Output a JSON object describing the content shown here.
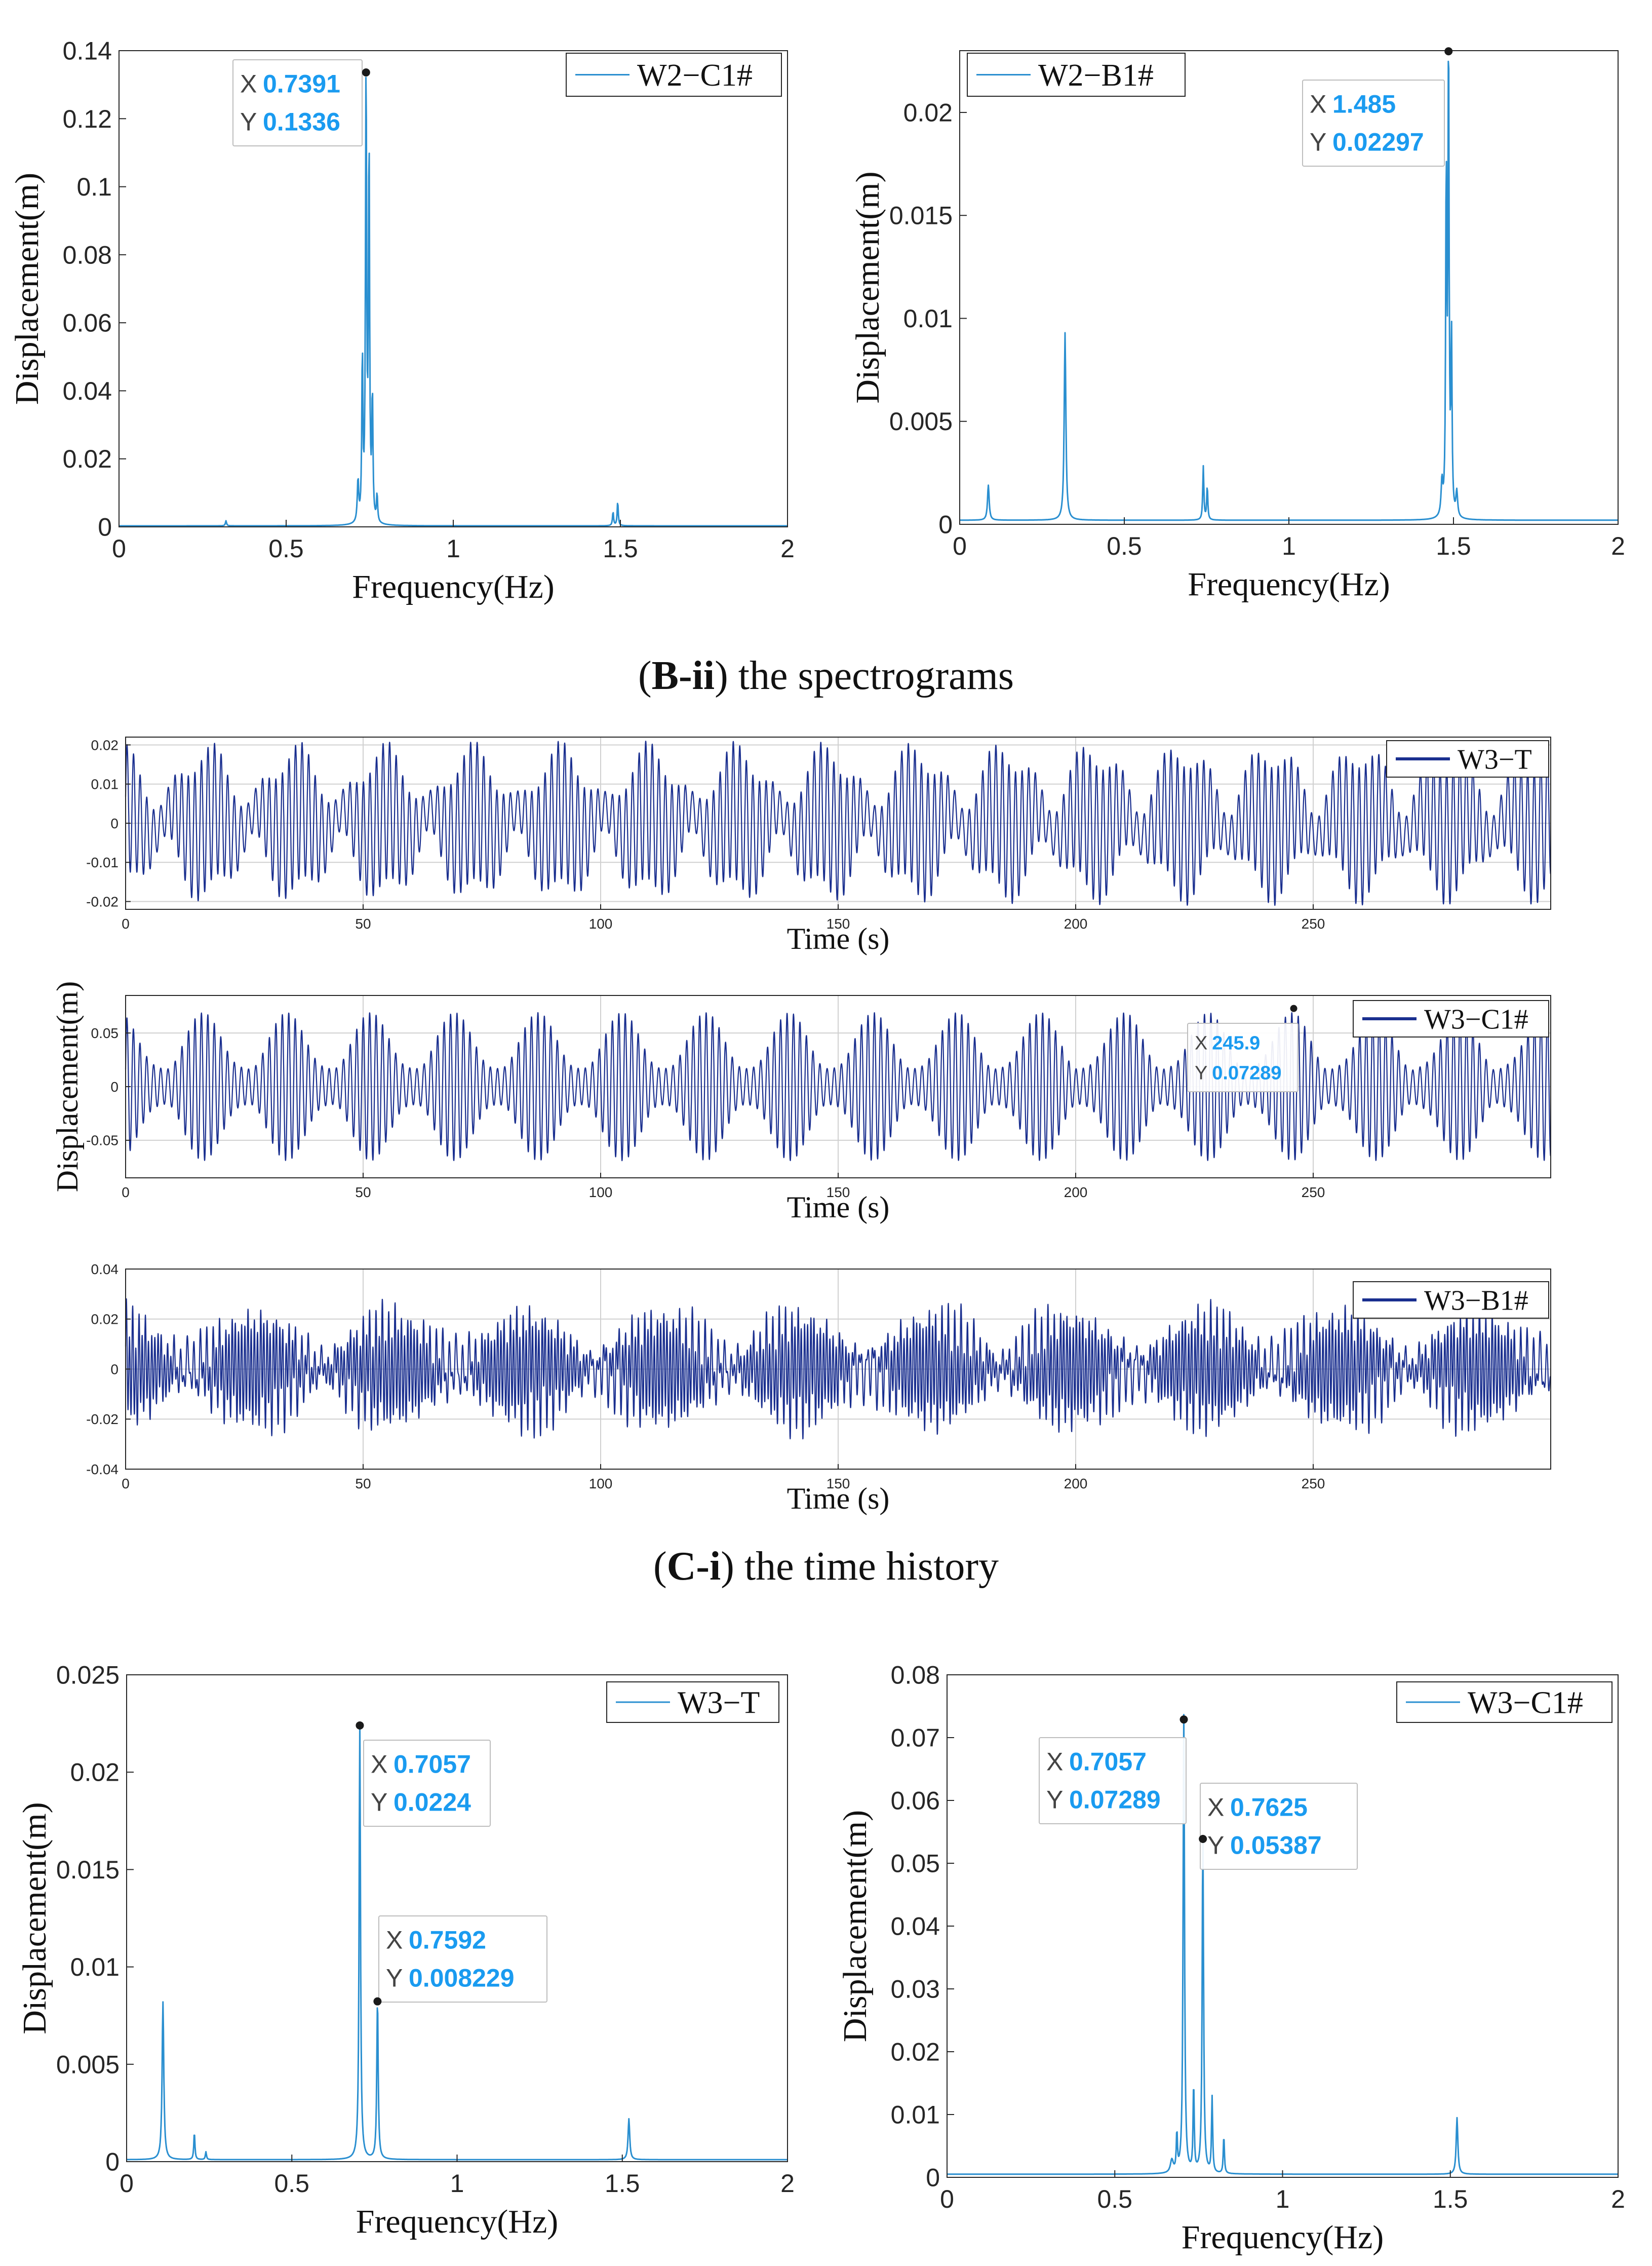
{
  "colors": {
    "spectrum_line": "#2a8fd0",
    "time_line": "#1a2f8f",
    "axis": "#262626",
    "grid": "#d0d0d0",
    "datatip_value": "#1a9bf0",
    "datatip_label": "#444444"
  },
  "captions": {
    "bii": {
      "bold": "B-ii",
      "text": " the spectrograms",
      "open": "(",
      "close": ")"
    },
    "ci": {
      "bold": "C-i",
      "text": " the time history",
      "open": "(",
      "close": ")"
    }
  },
  "chart_data": [
    {
      "id": "spec-w2-c1",
      "type": "line",
      "title": "",
      "legend": "W2−C1#",
      "xlabel": "Frequency(Hz)",
      "ylabel": "Displacement(m)",
      "xlim": [
        0,
        2
      ],
      "ylim": [
        0,
        0.14
      ],
      "xticks": [
        0,
        0.5,
        1,
        1.5,
        2
      ],
      "xtick_labels": [
        "0",
        "0.5",
        "1",
        "1.5",
        "2"
      ],
      "yticks": [
        0,
        0.02,
        0.04,
        0.06,
        0.08,
        0.1,
        0.12,
        0.14
      ],
      "ytick_labels": [
        "0",
        "0.02",
        "0.04",
        "0.06",
        "0.08",
        "0.1",
        "0.12",
        "0.14"
      ],
      "peaks": [
        [
          0.32,
          0.0015,
          0.004
        ],
        [
          0.715,
          0.012,
          0.005
        ],
        [
          0.728,
          0.048,
          0.004
        ],
        [
          0.7391,
          0.1336,
          0.004
        ],
        [
          0.748,
          0.11,
          0.004
        ],
        [
          0.758,
          0.036,
          0.004
        ],
        [
          0.772,
          0.008,
          0.004
        ],
        [
          1.478,
          0.004,
          0.004
        ],
        [
          1.492,
          0.007,
          0.004
        ]
      ],
      "baseline": 0.0003,
      "datatips": [
        {
          "x": 0.7391,
          "y": 0.1336,
          "x_label": "X",
          "y_label": "Y",
          "x_text": "0.7391",
          "y_text": "0.1336"
        }
      ]
    },
    {
      "id": "spec-w2-b1",
      "type": "line",
      "title": "",
      "legend": "W2−B1#",
      "xlabel": "Frequency(Hz)",
      "ylabel": "Displacement(m)",
      "xlim": [
        0,
        2
      ],
      "ylim": [
        0,
        0.023
      ],
      "xticks": [
        0,
        0.5,
        1,
        1.5,
        2
      ],
      "xtick_labels": [
        "0",
        "0.5",
        "1",
        "1.5",
        "2"
      ],
      "yticks": [
        0,
        0.005,
        0.01,
        0.015,
        0.02
      ],
      "ytick_labels": [
        "0",
        "0.005",
        "0.01",
        "0.015",
        "0.02"
      ],
      "peaks": [
        [
          0.087,
          0.0017,
          0.006
        ],
        [
          0.32,
          0.0091,
          0.006
        ],
        [
          0.74,
          0.0026,
          0.004
        ],
        [
          0.752,
          0.0016,
          0.004
        ],
        [
          1.465,
          0.0016,
          0.006
        ],
        [
          1.478,
          0.0164,
          0.004
        ],
        [
          1.485,
          0.02297,
          0.004
        ],
        [
          1.494,
          0.0085,
          0.004
        ],
        [
          1.51,
          0.0012,
          0.006
        ]
      ],
      "baseline": 0.0002,
      "datatips": [
        {
          "x": 1.485,
          "y": 0.02297,
          "x_label": "X",
          "y_label": "Y",
          "x_text": "1.485",
          "y_text": "0.02297"
        }
      ]
    },
    {
      "id": "time-w3-t",
      "type": "line",
      "legend": "W3−T",
      "xlabel": "Time (s)",
      "ylabel": "",
      "xlim": [
        0,
        300
      ],
      "ylim": [
        -0.022,
        0.022
      ],
      "xticks": [
        0,
        50,
        100,
        150,
        200,
        250
      ],
      "xtick_labels": [
        "0",
        "50",
        "100",
        "150",
        "200",
        "250"
      ],
      "yticks": [
        -0.02,
        -0.01,
        0,
        0.01,
        0.02
      ],
      "ytick_labels": [
        "-0.02",
        "-0.01",
        "0",
        "0.01",
        "0.02"
      ],
      "components": [
        [
          0.0112,
          0.7057,
          0.0
        ],
        [
          0.0065,
          0.7592,
          0.6
        ],
        [
          0.0035,
          0.11,
          1.1
        ]
      ],
      "datatips": []
    },
    {
      "id": "time-w3-c1",
      "type": "line",
      "legend": "W3−C1#",
      "xlabel": "Time (s)",
      "ylabel": "Displacement(m)",
      "xlim": [
        0,
        300
      ],
      "ylim": [
        -0.085,
        0.085
      ],
      "xticks": [
        0,
        50,
        100,
        150,
        200,
        250
      ],
      "xtick_labels": [
        "0",
        "50",
        "100",
        "150",
        "200",
        "250"
      ],
      "yticks": [
        -0.05,
        0,
        0.05
      ],
      "ytick_labels": [
        "-0.05",
        "0",
        "0.05"
      ],
      "components": [
        [
          0.036,
          0.7057,
          0.0
        ],
        [
          0.026,
          0.7625,
          0.4
        ],
        [
          0.007,
          0.819,
          1.0
        ]
      ],
      "datatips": [
        {
          "x": 245.9,
          "y": 0.07289,
          "x_label": "X",
          "y_label": "Y",
          "x_text": "245.9",
          "y_text": "0.07289"
        }
      ]
    },
    {
      "id": "time-w3-b1",
      "type": "line",
      "legend": "W3−B1#",
      "xlabel": "Time (s)",
      "ylabel": "",
      "xlim": [
        0,
        300
      ],
      "ylim": [
        -0.04,
        0.04
      ],
      "xticks": [
        0,
        50,
        100,
        150,
        200,
        250
      ],
      "xtick_labels": [
        "0",
        "50",
        "100",
        "150",
        "200",
        "250"
      ],
      "yticks": [
        -0.04,
        -0.02,
        0,
        0.02,
        0.04
      ],
      "ytick_labels": [
        "-0.04",
        "-0.02",
        "0",
        "0.02",
        "0.04"
      ],
      "components": [
        [
          0.0115,
          1.485,
          0.0
        ],
        [
          0.0075,
          1.52,
          0.3
        ],
        [
          0.0055,
          0.7057,
          0.7
        ],
        [
          0.003,
          0.7625,
          1.2
        ],
        [
          0.0025,
          0.32,
          0.2
        ]
      ],
      "datatips": []
    },
    {
      "id": "spec-w3-t",
      "type": "line",
      "legend": "W3−T",
      "xlabel": "Frequency(Hz)",
      "ylabel": "Displacement(m)",
      "xlim": [
        0,
        2
      ],
      "ylim": [
        0,
        0.025
      ],
      "xticks": [
        0,
        0.5,
        1,
        1.5,
        2
      ],
      "xtick_labels": [
        "0",
        "0.5",
        "1",
        "1.5",
        "2"
      ],
      "yticks": [
        0,
        0.005,
        0.01,
        0.015,
        0.02,
        0.025
      ],
      "ytick_labels": [
        "0",
        "0.005",
        "0.01",
        "0.015",
        "0.02",
        "0.025"
      ],
      "peaks": [
        [
          0.11,
          0.0081,
          0.006
        ],
        [
          0.205,
          0.0014,
          0.004
        ],
        [
          0.24,
          0.0004,
          0.004
        ],
        [
          0.7057,
          0.0224,
          0.005
        ],
        [
          0.7592,
          0.008229,
          0.005
        ],
        [
          1.52,
          0.0021,
          0.006
        ]
      ],
      "baseline": 0.0001,
      "datatips": [
        {
          "x": 0.7057,
          "y": 0.0224,
          "x_label": "X",
          "y_label": "Y",
          "x_text": "0.7057",
          "y_text": "0.0224"
        },
        {
          "x": 0.7592,
          "y": 0.008229,
          "x_label": "X",
          "y_label": "Y",
          "x_text": "0.7592",
          "y_text": "0.008229"
        }
      ]
    },
    {
      "id": "spec-w3-c1",
      "type": "line",
      "legend": "W3−C1#",
      "xlabel": "Frequency(Hz)",
      "ylabel": "Displacement(m)",
      "xlim": [
        0,
        2
      ],
      "ylim": [
        0,
        0.08
      ],
      "xticks": [
        0,
        0.5,
        1,
        1.5,
        2
      ],
      "xtick_labels": [
        "0",
        "0.5",
        "1",
        "1.5",
        "2"
      ],
      "yticks": [
        0,
        0.01,
        0.02,
        0.03,
        0.04,
        0.05,
        0.06,
        0.07,
        0.08
      ],
      "ytick_labels": [
        "0",
        "0.01",
        "0.02",
        "0.03",
        "0.04",
        "0.05",
        "0.06",
        "0.07",
        "0.08"
      ],
      "peaks": [
        [
          0.67,
          0.002,
          0.01
        ],
        [
          0.685,
          0.006,
          0.004
        ],
        [
          0.7057,
          0.07289,
          0.005
        ],
        [
          0.735,
          0.014,
          0.004
        ],
        [
          0.7625,
          0.05387,
          0.005
        ],
        [
          0.79,
          0.012,
          0.004
        ],
        [
          0.825,
          0.006,
          0.004
        ],
        [
          1.52,
          0.009,
          0.006
        ]
      ],
      "baseline": 0.0005,
      "datatips": [
        {
          "x": 0.7057,
          "y": 0.07289,
          "x_label": "X",
          "y_label": "Y",
          "x_text": "0.7057",
          "y_text": "0.07289"
        },
        {
          "x": 0.7625,
          "y": 0.05387,
          "x_label": "X",
          "y_label": "Y",
          "x_text": "0.7625",
          "y_text": "0.05387"
        }
      ]
    }
  ]
}
